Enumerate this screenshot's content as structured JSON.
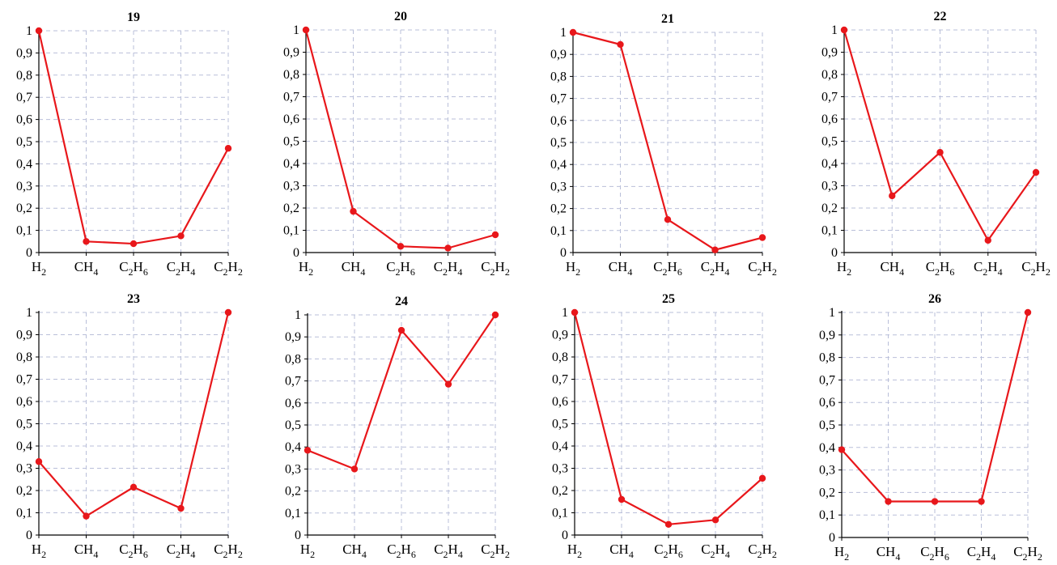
{
  "colors": {
    "series": "#e8171b",
    "grid": "#b9bfd9",
    "axis": "#000000"
  },
  "chart_data": [
    {
      "type": "line",
      "title": "19",
      "categories": [
        "H2",
        "CH4",
        "C2H6",
        "C2H4",
        "C2H2"
      ],
      "values": [
        1.0,
        0.05,
        0.04,
        0.075,
        0.47
      ],
      "ylim": [
        0,
        1
      ],
      "yticks": [
        "0",
        "0,1",
        "0,2",
        "0,3",
        "0,4",
        "0,5",
        "0,6",
        "0,7",
        "0,8",
        "0,9",
        "1"
      ],
      "grid": true
    },
    {
      "type": "line",
      "title": "20",
      "categories": [
        "H2",
        "CH4",
        "C2H6",
        "C2H4",
        "C2H2"
      ],
      "values": [
        1.0,
        0.185,
        0.028,
        0.02,
        0.08
      ],
      "ylim": [
        0,
        1
      ],
      "yticks": [
        "0",
        "0,1",
        "0,2",
        "0,3",
        "0,4",
        "0,5",
        "0,6",
        "0,7",
        "0,8",
        "0,9",
        "1"
      ],
      "grid": true
    },
    {
      "type": "line",
      "title": "21",
      "categories": [
        "H2",
        "CH4",
        "C2H6",
        "C2H4",
        "C2H2"
      ],
      "values": [
        1.0,
        0.945,
        0.15,
        0.012,
        0.068
      ],
      "ylim": [
        0,
        1
      ],
      "yticks": [
        "0",
        "0,1",
        "0,2",
        "0,3",
        "0,4",
        "0,5",
        "0,6",
        "0,7",
        "0,8",
        "0,9",
        "1"
      ],
      "grid": true
    },
    {
      "type": "line",
      "title": "22",
      "categories": [
        "H2",
        "CH4",
        "C2H6",
        "C2H4",
        "C2H2"
      ],
      "values": [
        1.0,
        0.255,
        0.45,
        0.055,
        0.36
      ],
      "ylim": [
        0,
        1
      ],
      "yticks": [
        "0",
        "0,1",
        "0,2",
        "0,3",
        "0,4",
        "0,5",
        "0,6",
        "0,7",
        "0,8",
        "0,9",
        "1"
      ],
      "grid": true
    },
    {
      "type": "line",
      "title": "23",
      "categories": [
        "H2",
        "CH4",
        "C2H6",
        "C2H4",
        "C2H2"
      ],
      "values": [
        0.33,
        0.085,
        0.215,
        0.12,
        1.0
      ],
      "ylim": [
        0,
        1
      ],
      "yticks": [
        "0",
        "0,1",
        "0,2",
        "0,3",
        "0,4",
        "0,5",
        "0,6",
        "0,7",
        "0,8",
        "0,9",
        "1"
      ],
      "grid": true
    },
    {
      "type": "line",
      "title": "24",
      "categories": [
        "H2",
        "CH4",
        "C2H6",
        "C2H4",
        "C2H2"
      ],
      "values": [
        0.385,
        0.3,
        0.93,
        0.685,
        1.0
      ],
      "ylim": [
        0,
        1
      ],
      "yticks": [
        "0",
        "0,1",
        "0,2",
        "0,3",
        "0,4",
        "0,5",
        "0,6",
        "0,7",
        "0,8",
        "0,9",
        "1"
      ],
      "grid": true
    },
    {
      "type": "line",
      "title": "25",
      "categories": [
        "H2",
        "CH4",
        "C2H6",
        "C2H4",
        "C2H2"
      ],
      "values": [
        1.0,
        0.16,
        0.048,
        0.068,
        0.255
      ],
      "ylim": [
        0,
        1
      ],
      "yticks": [
        "0",
        "0,1",
        "0,2",
        "0,3",
        "0,4",
        "0,5",
        "0,6",
        "0,7",
        "0,8",
        "0,9",
        "1"
      ],
      "grid": true
    },
    {
      "type": "line",
      "title": "26",
      "categories": [
        "H2",
        "CH4",
        "C2H6",
        "C2H4",
        "C2H2"
      ],
      "values": [
        0.39,
        0.16,
        0.16,
        0.16,
        1.0
      ],
      "ylim": [
        0,
        1
      ],
      "yticks": [
        "0",
        "0,1",
        "0,2",
        "0,3",
        "0,4",
        "0,5",
        "0,6",
        "0,7",
        "0,8",
        "0,9",
        "1"
      ],
      "grid": true
    }
  ]
}
